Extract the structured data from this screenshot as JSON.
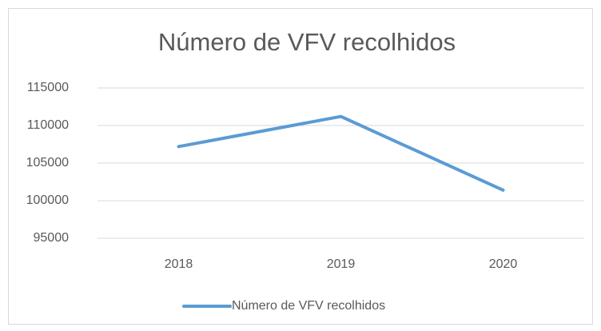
{
  "chart_data": {
    "type": "line",
    "title": "Número de VFV recolhidos",
    "categories": [
      "2018",
      "2019",
      "2020"
    ],
    "series": [
      {
        "name": "Número de VFV recolhidos",
        "color": "#5b9bd5",
        "values": [
          107200,
          111200,
          101400
        ]
      }
    ],
    "ylim": [
      95000,
      115000
    ],
    "yticks": [
      95000,
      100000,
      105000,
      110000,
      115000
    ],
    "grid": true,
    "legend": "bottom"
  }
}
